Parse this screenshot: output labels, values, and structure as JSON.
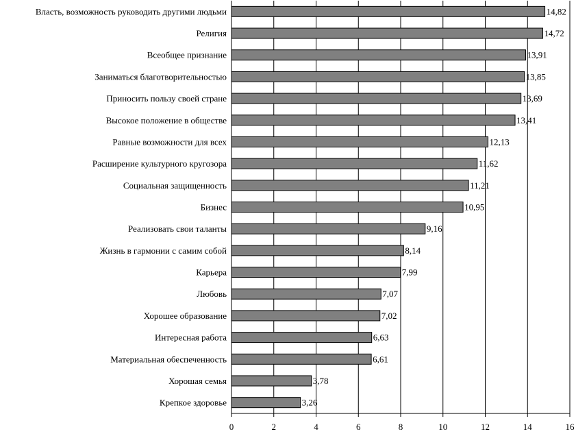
{
  "chart_data": {
    "type": "bar",
    "orientation": "horizontal",
    "title": "",
    "xlabel": "",
    "ylabel": "",
    "xlim": [
      0,
      16
    ],
    "ticks": [
      "0",
      "2",
      "4",
      "6",
      "8",
      "10",
      "12",
      "14",
      "16"
    ],
    "grid": "vertical",
    "bar_color": "#808080",
    "categories": [
      "Власть, возможность руководить другими людьми",
      "Религия",
      "Всеобщее признание",
      "Заниматься благотворительностью",
      "Приносить пользу своей стране",
      "Высокое положение в обществе",
      "Равные возможности для всех",
      "Расширение культурного кругозора",
      "Социальная защищенность",
      "Бизнес",
      "Реализовать свои таланты",
      "Жизнь в гармонии с самим собой",
      "Карьера",
      "Любовь",
      "Хорошее образование",
      "Интересная работа",
      "Материальная обеспеченность",
      "Хорошая семья",
      "Крепкое здоровье"
    ],
    "values": [
      14.82,
      14.72,
      13.91,
      13.85,
      13.69,
      13.41,
      12.13,
      11.62,
      11.21,
      10.95,
      9.16,
      8.14,
      7.99,
      7.07,
      7.02,
      6.63,
      6.61,
      3.78,
      3.26
    ],
    "value_labels": [
      "14,82",
      "14,72",
      "13,91",
      "13,85",
      "13,69",
      "13,41",
      "12,13",
      "11,62",
      "11,21",
      "10,95",
      "9,16",
      "8,14",
      "7,99",
      "7,07",
      "7,02",
      "6,63",
      "6,61",
      "3,78",
      "3,26"
    ]
  }
}
